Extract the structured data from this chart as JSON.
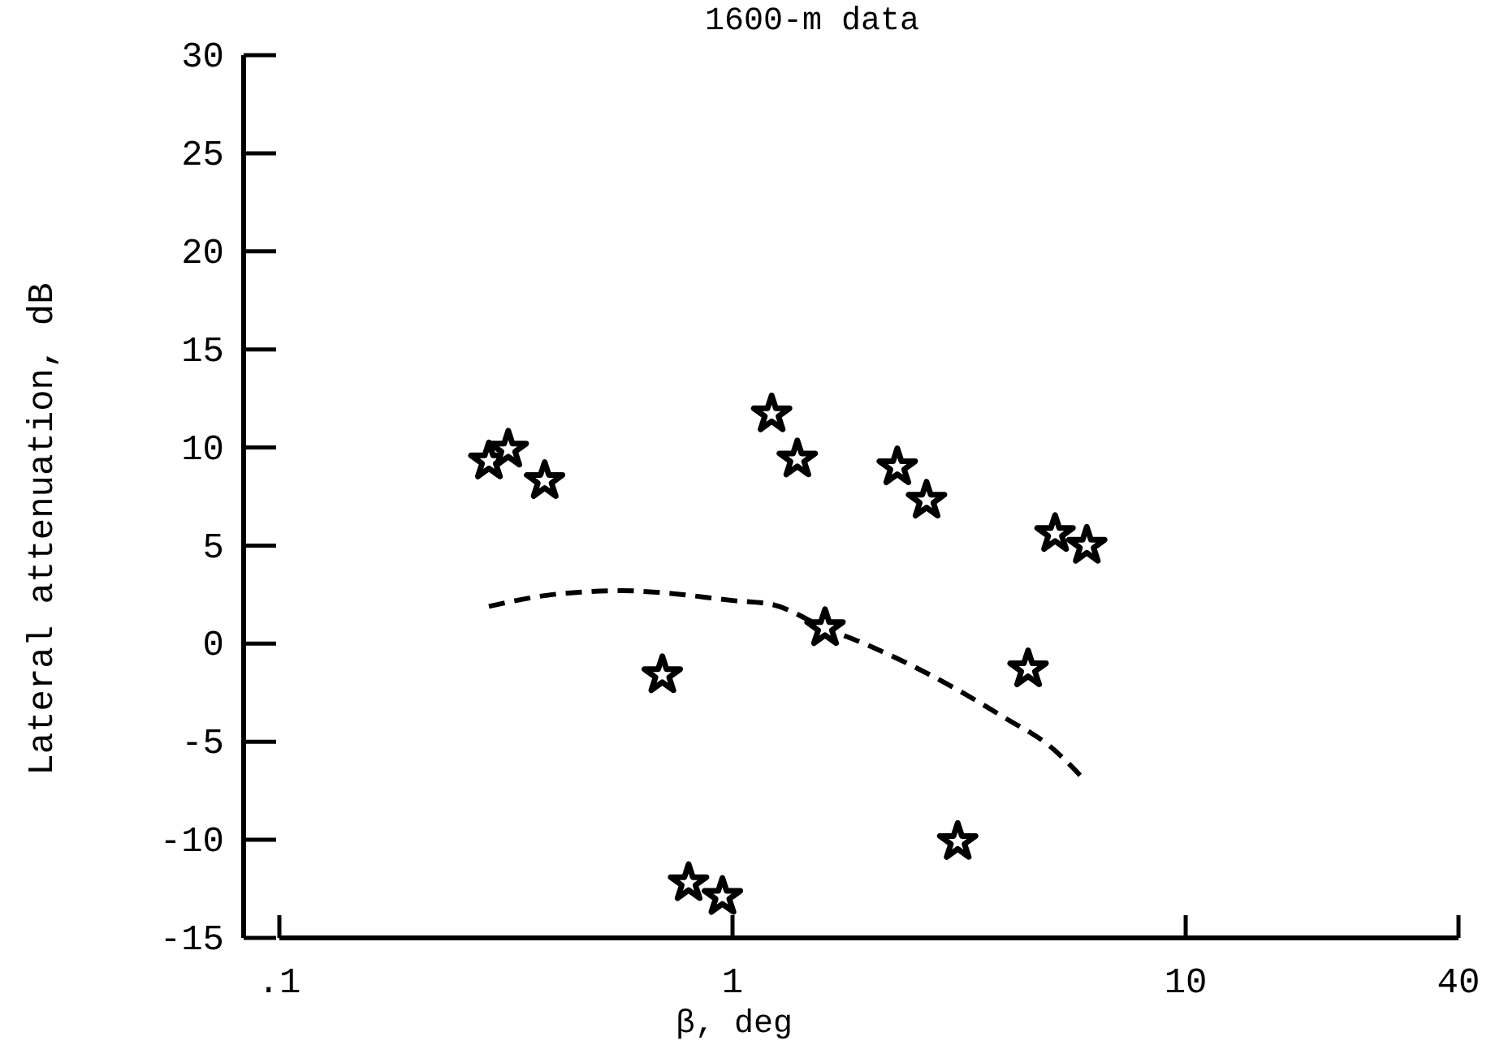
{
  "chart_data": {
    "type": "scatter",
    "title": "1600-m data",
    "xlabel": "β, deg",
    "ylabel": "Lateral attenuation, dB",
    "log": "x",
    "xlim": [
      0.1,
      40
    ],
    "ylim": [
      -15,
      30
    ],
    "xticks": [
      {
        "value": 0.1,
        "label": ".1"
      },
      1,
      10,
      40
    ],
    "yticks": [
      -15,
      -10,
      -5,
      0,
      5,
      10,
      15,
      20,
      25,
      30
    ],
    "grid": false,
    "series": [
      {
        "type": "scatter",
        "color": "#000000",
        "marker": "star",
        "x": [
          0.29,
          0.32,
          0.385,
          0.7,
          0.8,
          0.95,
          1.22,
          1.39,
          1.6,
          2.31,
          2.68,
          3.14,
          4.49,
          5.15,
          6.05
        ],
        "values": [
          9.3,
          9.9,
          8.3,
          -1.6,
          -12.2,
          -12.9,
          11.7,
          9.4,
          0.8,
          9.0,
          7.3,
          -10.1,
          -1.3,
          5.6,
          5.0
        ]
      },
      {
        "type": "line",
        "color": "#000000",
        "marker": "none",
        "line_style": "dashed",
        "x": [
          0.29,
          0.4,
          0.57,
          0.7,
          1,
          1.22,
          1.6,
          2,
          3,
          4,
          5,
          5.9
        ],
        "values": [
          1.9,
          2.5,
          2.7,
          2.6,
          2.2,
          2.0,
          0.8,
          -0.1,
          -2.1,
          -3.8,
          -5.2,
          -6.8
        ]
      }
    ]
  }
}
